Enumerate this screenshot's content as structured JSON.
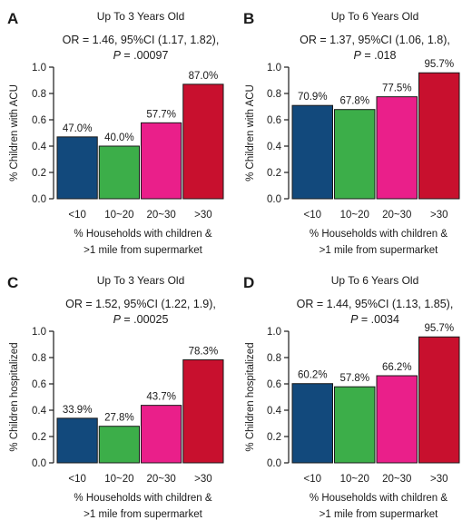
{
  "chart_data": [
    {
      "type": "bar",
      "panel": "A",
      "title": "Up To 3 Years Old",
      "stat_line1": "OR = 1.46, 95%CI (1.17, 1.82),",
      "stat_p": "P",
      "stat_line2_rest": " = .00097",
      "categories": [
        "<10",
        "10~20",
        "20~30",
        ">30"
      ],
      "values": [
        0.47,
        0.4,
        0.577,
        0.87
      ],
      "value_labels": [
        "47.0%",
        "40.0%",
        "57.7%",
        "87.0%"
      ],
      "colors": [
        "#12497c",
        "#3cae49",
        "#ea1f8a",
        "#c8102e"
      ],
      "ylabel": "% Children with ACU",
      "xlabel_line1": "% Households with children &",
      "xlabel_line2": ">1 mile from supermarket",
      "ylim": [
        0,
        1.0
      ],
      "yticks": [
        "0.0",
        "0.2",
        "0.4",
        "0.6",
        "0.8",
        "1.0"
      ]
    },
    {
      "type": "bar",
      "panel": "B",
      "title": "Up To 6 Years Old",
      "stat_line1": "OR = 1.37, 95%CI (1.06, 1.8),",
      "stat_p": "P",
      "stat_line2_rest": " = .018",
      "categories": [
        "<10",
        "10~20",
        "20~30",
        ">30"
      ],
      "values": [
        0.709,
        0.678,
        0.775,
        0.957
      ],
      "value_labels": [
        "70.9%",
        "67.8%",
        "77.5%",
        "95.7%"
      ],
      "colors": [
        "#12497c",
        "#3cae49",
        "#ea1f8a",
        "#c8102e"
      ],
      "ylabel": "% Children with ACU",
      "xlabel_line1": "% Households with children &",
      "xlabel_line2": ">1 mile from supermarket",
      "ylim": [
        0,
        1.0
      ],
      "yticks": [
        "0.0",
        "0.2",
        "0.4",
        "0.6",
        "0.8",
        "1.0"
      ]
    },
    {
      "type": "bar",
      "panel": "C",
      "title": "Up To 3 Years Old",
      "stat_line1": "OR = 1.52, 95%CI (1.22, 1.9),",
      "stat_p": "P",
      "stat_line2_rest": " = .00025",
      "categories": [
        "<10",
        "10~20",
        "20~30",
        ">30"
      ],
      "values": [
        0.339,
        0.278,
        0.437,
        0.783
      ],
      "value_labels": [
        "33.9%",
        "27.8%",
        "43.7%",
        "78.3%"
      ],
      "colors": [
        "#12497c",
        "#3cae49",
        "#ea1f8a",
        "#c8102e"
      ],
      "ylabel": "% Children hospitalized",
      "xlabel_line1": "% Households with children &",
      "xlabel_line2": ">1 mile from supermarket",
      "ylim": [
        0,
        1.0
      ],
      "yticks": [
        "0.0",
        "0.2",
        "0.4",
        "0.6",
        "0.8",
        "1.0"
      ]
    },
    {
      "type": "bar",
      "panel": "D",
      "title": "Up To 6 Years Old",
      "stat_line1": "OR = 1.44, 95%CI (1.13, 1.85),",
      "stat_p": "P",
      "stat_line2_rest": " = .0034",
      "categories": [
        "<10",
        "10~20",
        "20~30",
        ">30"
      ],
      "values": [
        0.602,
        0.578,
        0.662,
        0.957
      ],
      "value_labels": [
        "60.2%",
        "57.8%",
        "66.2%",
        "95.7%"
      ],
      "colors": [
        "#12497c",
        "#3cae49",
        "#ea1f8a",
        "#c8102e"
      ],
      "ylabel": "% Children hospitalized",
      "xlabel_line1": "% Households with children &",
      "xlabel_line2": ">1 mile from supermarket",
      "ylim": [
        0,
        1.0
      ],
      "yticks": [
        "0.0",
        "0.2",
        "0.4",
        "0.6",
        "0.8",
        "1.0"
      ]
    }
  ]
}
